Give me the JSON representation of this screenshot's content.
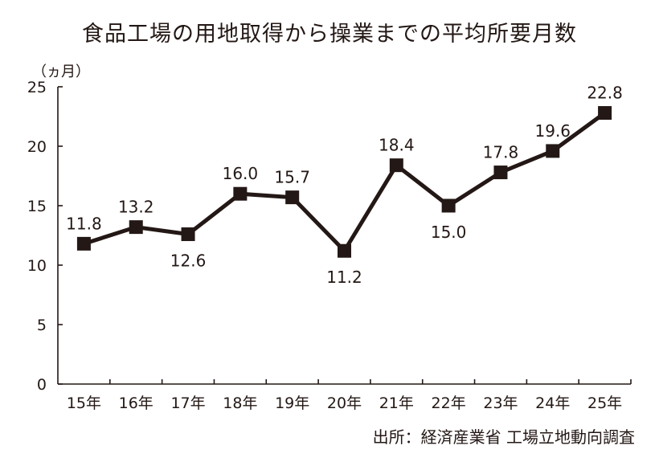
{
  "title": "食品工場の用地取得から操業までの平均所要月数",
  "source": "出所：経済産業省 工場立地動向調査",
  "chart_data": {
    "type": "line",
    "title": "食品工場の用地取得から操業までの平均所要月数",
    "unit_label": "（ヵ月）",
    "xlabel": "",
    "ylabel": "",
    "categories": [
      "15年",
      "16年",
      "17年",
      "18年",
      "19年",
      "20年",
      "21年",
      "22年",
      "23年",
      "24年",
      "25年"
    ],
    "series": [
      {
        "values": [
          11.8,
          13.2,
          12.6,
          16.0,
          15.7,
          11.2,
          18.4,
          15.0,
          17.8,
          19.6,
          22.8
        ],
        "labels": [
          "11.8",
          "13.2",
          "12.6",
          "16.0",
          "15.7",
          "11.2",
          "18.4",
          "15.0",
          "17.8",
          "19.6",
          "22.8"
        ]
      }
    ],
    "ylim": [
      0,
      25
    ],
    "yticks": [
      "0",
      "5",
      "10",
      "15",
      "20",
      "25"
    ],
    "grid": false,
    "legend": "none",
    "line_color": "#231815",
    "marker": "square"
  }
}
